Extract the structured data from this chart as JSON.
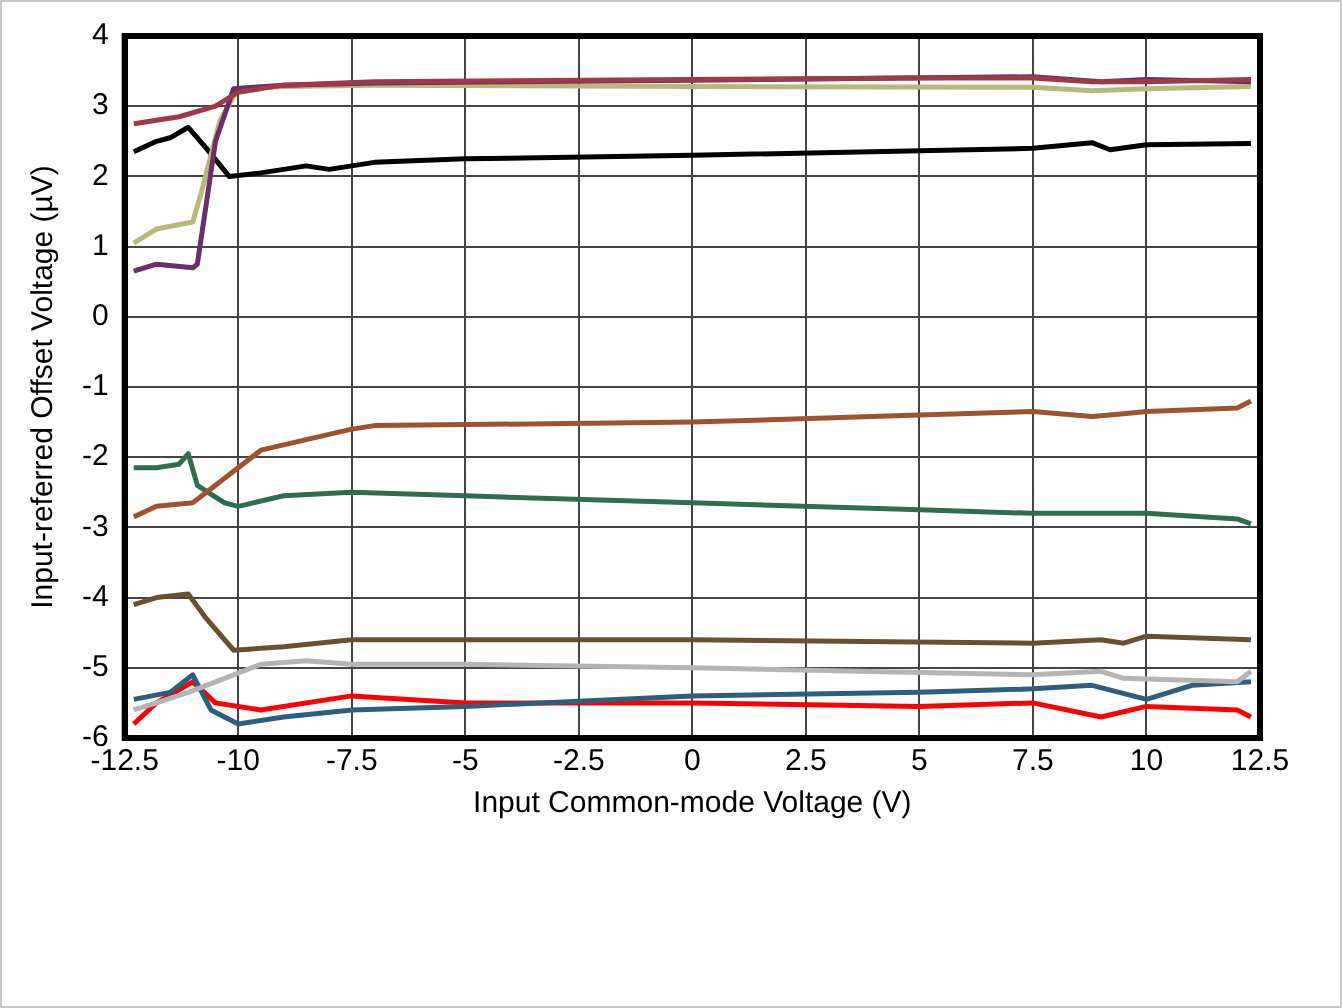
{
  "chart_data": {
    "type": "line",
    "xlabel": "Input Common-mode Voltage (V)",
    "ylabel": "Input-referred Offset Voltage (µV)",
    "xlim": [
      -12.5,
      12.5
    ],
    "xticks": [
      -12.5,
      -10,
      -7.5,
      -5,
      -2.5,
      0,
      2.5,
      5,
      7.5,
      10,
      12.5
    ],
    "ylim": [
      -6,
      4
    ],
    "yticks": [
      -6,
      -5,
      -4,
      -3,
      -2,
      -1,
      0,
      1,
      2,
      3,
      4
    ],
    "grid": true,
    "legend": false,
    "marker": "none",
    "line_style": "solid",
    "series": [
      {
        "color": "#a03848",
        "x": [
          -12.3,
          -11.3,
          -10.5,
          -10,
          -9,
          -7,
          0,
          5,
          7.5,
          8.8,
          10,
          12.3
        ],
        "values": [
          2.75,
          2.85,
          3.0,
          3.2,
          3.3,
          3.35,
          3.38,
          3.4,
          3.4,
          3.35,
          3.35,
          3.38
        ]
      },
      {
        "color": "#6b2d6b",
        "x": [
          -12.3,
          -11.8,
          -11,
          -10.9,
          -10.5,
          -10.1,
          -9,
          -7,
          0,
          7.5,
          9,
          10,
          12.3
        ],
        "values": [
          0.65,
          0.75,
          0.7,
          0.75,
          2.5,
          3.25,
          3.3,
          3.33,
          3.37,
          3.42,
          3.35,
          3.38,
          3.35
        ]
      },
      {
        "color": "#b8b878",
        "x": [
          -12.3,
          -11.8,
          -11,
          -10.8,
          -10.4,
          -10,
          -9,
          -7,
          0,
          7.5,
          8.8,
          10,
          12.3
        ],
        "values": [
          1.05,
          1.25,
          1.35,
          1.8,
          2.8,
          3.25,
          3.28,
          3.3,
          3.28,
          3.27,
          3.22,
          3.25,
          3.28
        ]
      },
      {
        "color": "#000000",
        "x": [
          -12.3,
          -11.8,
          -11.5,
          -11.1,
          -10.7,
          -10.2,
          -9.5,
          -8.5,
          -8,
          -7,
          -5,
          0,
          7.5,
          8.8,
          9.2,
          10,
          12.3
        ],
        "values": [
          2.35,
          2.5,
          2.55,
          2.7,
          2.4,
          2.0,
          2.05,
          2.15,
          2.1,
          2.2,
          2.25,
          2.3,
          2.4,
          2.48,
          2.38,
          2.45,
          2.47
        ]
      },
      {
        "color": "#a0522d",
        "x": [
          -12.3,
          -11.8,
          -11,
          -10.3,
          -9.5,
          -8.5,
          -7.5,
          -7,
          0,
          5,
          7.5,
          8.8,
          9.5,
          10,
          12,
          12.3
        ],
        "values": [
          -2.85,
          -2.7,
          -2.65,
          -2.3,
          -1.9,
          -1.75,
          -1.6,
          -1.55,
          -1.5,
          -1.4,
          -1.35,
          -1.42,
          -1.38,
          -1.35,
          -1.3,
          -1.2
        ]
      },
      {
        "color": "#2e6e50",
        "x": [
          -12.3,
          -11.8,
          -11.3,
          -11.1,
          -10.9,
          -10.3,
          -10,
          -9,
          -7.5,
          -5,
          0,
          5,
          7.5,
          8.5,
          10,
          12,
          12.3
        ],
        "values": [
          -2.15,
          -2.15,
          -2.1,
          -1.95,
          -2.4,
          -2.65,
          -2.7,
          -2.55,
          -2.5,
          -2.55,
          -2.65,
          -2.75,
          -2.8,
          -2.8,
          -2.8,
          -2.88,
          -2.95
        ]
      },
      {
        "color": "#6b5030",
        "x": [
          -12.3,
          -11.8,
          -11.1,
          -10.7,
          -10.1,
          -9,
          -7.5,
          0,
          7.5,
          9,
          9.5,
          10,
          12.3
        ],
        "values": [
          -4.1,
          -4.0,
          -3.95,
          -4.3,
          -4.75,
          -4.7,
          -4.6,
          -4.6,
          -4.65,
          -4.6,
          -4.65,
          -4.55,
          -4.6
        ]
      },
      {
        "color": "#b4b4b4",
        "x": [
          -12.3,
          -11.8,
          -11.1,
          -10.3,
          -9.5,
          -8.5,
          -7.5,
          -5,
          0,
          7.5,
          9,
          9.5,
          12,
          12.3
        ],
        "values": [
          -5.6,
          -5.5,
          -5.35,
          -5.15,
          -4.95,
          -4.9,
          -4.95,
          -4.95,
          -5.0,
          -5.1,
          -5.05,
          -5.15,
          -5.2,
          -5.05
        ]
      },
      {
        "color": "#2d5f7d",
        "x": [
          -12.3,
          -11.5,
          -11,
          -10.6,
          -10,
          -9,
          -7.5,
          -5,
          0,
          5,
          7.5,
          8.8,
          10,
          11,
          12.3
        ],
        "values": [
          -5.45,
          -5.35,
          -5.1,
          -5.6,
          -5.8,
          -5.7,
          -5.6,
          -5.55,
          -5.4,
          -5.35,
          -5.3,
          -5.25,
          -5.45,
          -5.25,
          -5.2
        ]
      },
      {
        "color": "#ff0000",
        "x": [
          -12.3,
          -11.8,
          -11,
          -10.5,
          -9.5,
          -8,
          -7.5,
          -5,
          0,
          5,
          7.5,
          9,
          10,
          12,
          12.3
        ],
        "values": [
          -5.8,
          -5.5,
          -5.2,
          -5.5,
          -5.6,
          -5.45,
          -5.4,
          -5.5,
          -5.5,
          -5.55,
          -5.5,
          -5.7,
          -5.55,
          -5.6,
          -5.7
        ]
      }
    ]
  }
}
